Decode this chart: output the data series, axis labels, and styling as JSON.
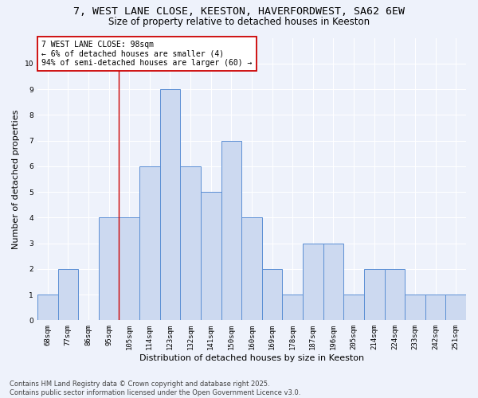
{
  "title_line1": "7, WEST LANE CLOSE, KEESTON, HAVERFORDWEST, SA62 6EW",
  "title_line2": "Size of property relative to detached houses in Keeston",
  "xlabel": "Distribution of detached houses by size in Keeston",
  "ylabel": "Number of detached properties",
  "bins": [
    "68sqm",
    "77sqm",
    "86sqm",
    "95sqm",
    "105sqm",
    "114sqm",
    "123sqm",
    "132sqm",
    "141sqm",
    "150sqm",
    "160sqm",
    "169sqm",
    "178sqm",
    "187sqm",
    "196sqm",
    "205sqm",
    "214sqm",
    "224sqm",
    "233sqm",
    "242sqm",
    "251sqm"
  ],
  "values": [
    1,
    2,
    0,
    4,
    4,
    6,
    9,
    6,
    5,
    7,
    4,
    2,
    1,
    3,
    3,
    1,
    2,
    2,
    1,
    1,
    1
  ],
  "bar_color": "#ccd9f0",
  "bar_edge_color": "#5b8fd4",
  "red_line_x": 3.5,
  "annotation_text": "7 WEST LANE CLOSE: 98sqm\n← 6% of detached houses are smaller (4)\n94% of semi-detached houses are larger (60) →",
  "annotation_box_color": "#ffffff",
  "annotation_box_edge": "#cc0000",
  "ylim": [
    0,
    11
  ],
  "yticks": [
    0,
    1,
    2,
    3,
    4,
    5,
    6,
    7,
    8,
    9,
    10
  ],
  "footer": "Contains HM Land Registry data © Crown copyright and database right 2025.\nContains public sector information licensed under the Open Government Licence v3.0.",
  "background_color": "#eef2fb",
  "grid_color": "#ffffff",
  "title_fontsize": 9.5,
  "subtitle_fontsize": 8.5,
  "tick_fontsize": 6.5,
  "ylabel_fontsize": 8,
  "xlabel_fontsize": 8,
  "footer_fontsize": 6,
  "annot_fontsize": 7
}
